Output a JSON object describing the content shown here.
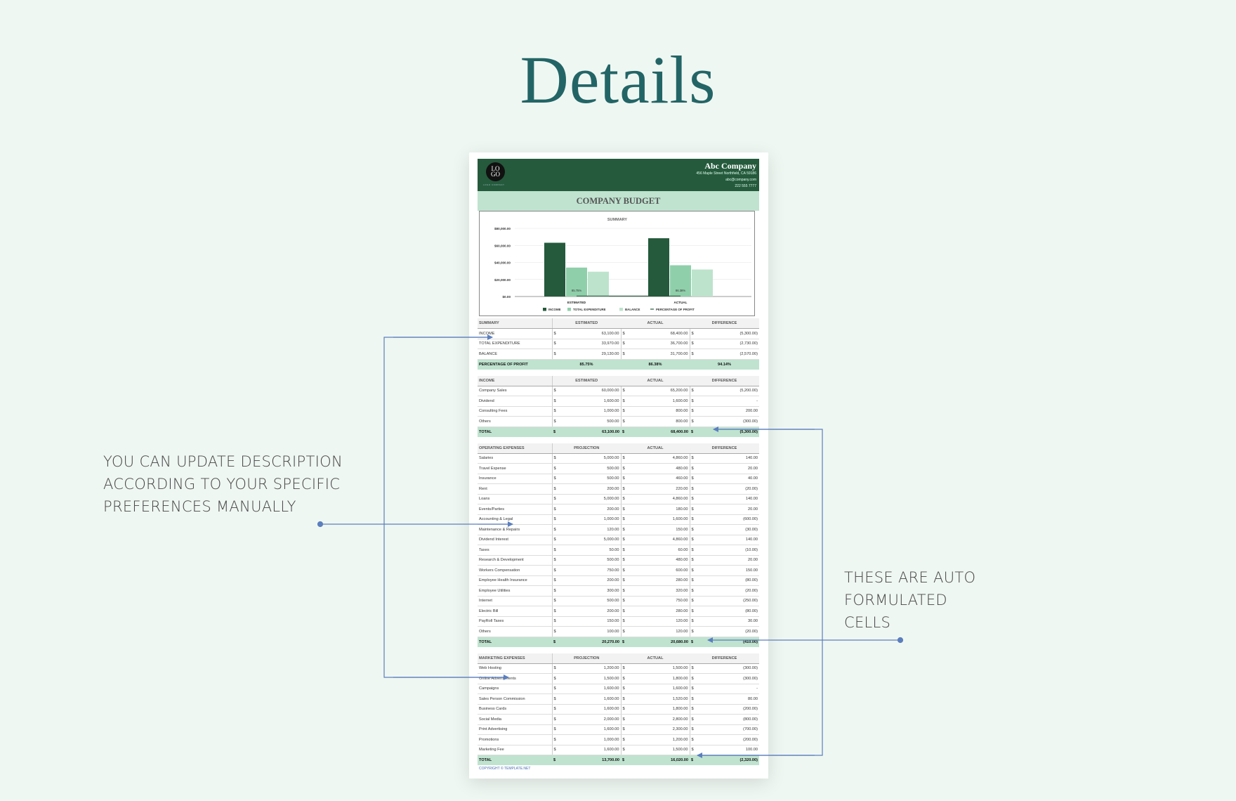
{
  "page_title": "Details",
  "notes": {
    "left": [
      "YOU CAN UPDATE DESCRIPTION",
      "ACCORDING TO YOUR SPECIFIC",
      "PREFERENCES MANUALLY"
    ],
    "right": [
      "THESE ARE AUTO",
      "FORMULATED",
      "CELLS"
    ]
  },
  "document": {
    "logo_text": [
      "LO",
      "GO"
    ],
    "logo_caption": "LOGO COMPANY",
    "company": "Abc Company",
    "address": "456 Maple Street Northfield, CA 59186",
    "email": "abc@company.com",
    "phone": "222 555 7777",
    "title": "COMPANY BUDGET",
    "copyright": "COPYRIGHT © TEMPLATE.NET"
  },
  "colors": {
    "dark_green": "#255a3c",
    "mid_green": "#8fcfaa",
    "light_green": "#bde3cc",
    "annotation": "#5b7fbe"
  },
  "chart_data": {
    "type": "bar",
    "title": "SUMMARY",
    "categories": [
      "ESTIMATED",
      "ACTUAL"
    ],
    "series": [
      {
        "name": "INCOME",
        "values": [
          63100,
          68400
        ],
        "color": "#255a3c"
      },
      {
        "name": "TOTAL EXPENDITURE",
        "values": [
          33970,
          36700
        ],
        "color": "#8fcfaa"
      },
      {
        "name": "BALANCE",
        "values": [
          29130,
          31700
        ],
        "color": "#bde3cc"
      },
      {
        "name": "PERCENTAGE OF PROFIT",
        "type": "line",
        "values": [
          0.8575,
          0.8638
        ],
        "labels": [
          "85.75%",
          "86.38%"
        ],
        "color": "#255a3c"
      }
    ],
    "yticks": [
      "$0.00",
      "$20,000.00",
      "$40,000.00",
      "$60,000.00",
      "$80,000.00"
    ],
    "ylim": [
      0,
      80000
    ],
    "grid": true,
    "legend": "bottom"
  },
  "sections": [
    {
      "header": [
        "SUMMARY",
        "ESTIMATED",
        "ACTUAL",
        "DIFFERENCE"
      ],
      "rows": [
        [
          "INCOME",
          "63,100.00",
          "68,400.00",
          "(5,300.00)"
        ],
        [
          "TOTAL EXPENDITURE",
          "33,970.00",
          "36,700.00",
          "(2,730.00)"
        ],
        [
          "BALANCE",
          "29,130.00",
          "31,700.00",
          "(2,570.00)"
        ]
      ],
      "pct": [
        "PERCENTAGE OF PROFIT",
        "85.75%",
        "86.38%",
        "94.14%"
      ]
    },
    {
      "header": [
        "INCOME",
        "ESTIMATED",
        "ACTUAL",
        "DIFFERENCE"
      ],
      "rows": [
        [
          "Company Sales",
          "60,000.00",
          "65,200.00",
          "(5,200.00)"
        ],
        [
          "Dividend",
          "1,600.00",
          "1,600.00",
          "-"
        ],
        [
          "Consulting Fees",
          "1,000.00",
          "800.00",
          "200.00"
        ],
        [
          "Others",
          "500.00",
          "800.00",
          "(300.00)"
        ]
      ],
      "total": [
        "TOTAL",
        "63,100.00",
        "68,400.00",
        "(5,300.00)"
      ]
    },
    {
      "header": [
        "OPERATING EXPENSES",
        "PROJECTION",
        "ACTUAL",
        "DIFFERENCE"
      ],
      "rows": [
        [
          "Salaries",
          "5,000.00",
          "4,860.00",
          "140.00"
        ],
        [
          "Travel Expense",
          "500.00",
          "480.00",
          "20.00"
        ],
        [
          "Insurance",
          "500.00",
          "460.00",
          "40.00"
        ],
        [
          "Rent",
          "200.00",
          "220.00",
          "(20.00)"
        ],
        [
          "Loans",
          "5,000.00",
          "4,860.00",
          "140.00"
        ],
        [
          "Events/Parties",
          "200.00",
          "180.00",
          "20.00"
        ],
        [
          "Accounting & Legal",
          "1,000.00",
          "1,600.00",
          "(600.00)"
        ],
        [
          "Maintenance & Repairs",
          "120.00",
          "150.00",
          "(30.00)"
        ],
        [
          "Dividend Interest",
          "5,000.00",
          "4,860.00",
          "140.00"
        ],
        [
          "Taxes",
          "50.00",
          "60.00",
          "(10.00)"
        ],
        [
          "Research & Development",
          "500.00",
          "480.00",
          "20.00"
        ],
        [
          "Workers Compensation",
          "750.00",
          "600.00",
          "150.00"
        ],
        [
          "Employee Health Insurance",
          "200.00",
          "280.00",
          "(80.00)"
        ],
        [
          "Employee Utilities",
          "300.00",
          "320.00",
          "(20.00)"
        ],
        [
          "Internet",
          "500.00",
          "750.00",
          "(250.00)"
        ],
        [
          "Electric Bill",
          "200.00",
          "280.00",
          "(80.00)"
        ],
        [
          "PayRoll Taxes",
          "150.00",
          "120.00",
          "30.00"
        ],
        [
          "Others",
          "100.00",
          "120.00",
          "(20.00)"
        ]
      ],
      "total": [
        "TOTAL",
        "20,270.00",
        "20,680.00",
        "(410.00)"
      ]
    },
    {
      "header": [
        "MARKETING EXPENSES",
        "PROJECTION",
        "ACTUAL",
        "DIFFERENCE"
      ],
      "rows": [
        [
          "Web Hosting",
          "1,200.00",
          "1,500.00",
          "(300.00)"
        ],
        [
          "Online Advertisments",
          "1,500.00",
          "1,800.00",
          "(300.00)"
        ],
        [
          "Campaigns",
          "1,600.00",
          "1,600.00",
          "-"
        ],
        [
          "Sales Person Commission",
          "1,600.00",
          "1,520.00",
          "80.00"
        ],
        [
          "Business Cards",
          "1,600.00",
          "1,800.00",
          "(200.00)"
        ],
        [
          "Social Media",
          "2,000.00",
          "2,800.00",
          "(800.00)"
        ],
        [
          "Print Advertising",
          "1,600.00",
          "2,300.00",
          "(700.00)"
        ],
        [
          "Promotions",
          "1,000.00",
          "1,200.00",
          "(200.00)"
        ],
        [
          "Marketing Fee",
          "1,600.00",
          "1,500.00",
          "100.00"
        ]
      ],
      "total": [
        "TOTAL",
        "13,700.00",
        "16,020.00",
        "(2,320.00)"
      ]
    }
  ],
  "currency_symbol": "$"
}
